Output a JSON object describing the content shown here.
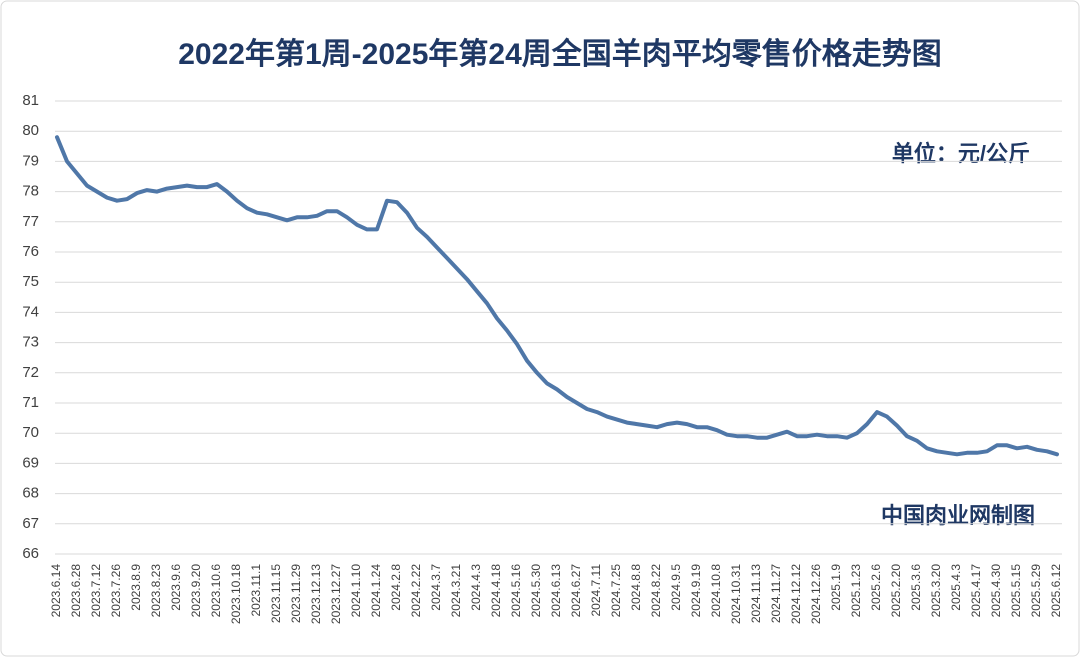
{
  "chart_data": {
    "type": "line",
    "title": "2022年第1周-2025年第24周全国羊肉平均零售价格走势图",
    "unit_note": "单位：元/公斤",
    "source_note": "中国肉业网制图",
    "categories": [
      "2023.6.14",
      null,
      "2023.6.28",
      null,
      "2023.7.12",
      null,
      "2023.7.26",
      null,
      "2023.8.9",
      null,
      "2023.8.23",
      null,
      "2023.9.6",
      null,
      "2023.9.20",
      null,
      "2023.10.6",
      null,
      "2023.10.18",
      null,
      "2023.11.1",
      null,
      "2023.11.15",
      null,
      "2023.11.29",
      null,
      "2023.12.13",
      null,
      "2023.12.27",
      null,
      "2024.1.10",
      null,
      "2024.1.24",
      null,
      "2024.2.8",
      null,
      "2024.2.22",
      null,
      "2024.3.7",
      null,
      "2024.3.21",
      null,
      "2024.4.3",
      null,
      "2024.4.18",
      null,
      "2024.5.16",
      null,
      "2024.5.30",
      null,
      "2024.6.13",
      null,
      "2024.6.27",
      null,
      "2024.7.11",
      null,
      "2024.7.25",
      null,
      "2024.8.8",
      null,
      "2024.8.22",
      null,
      "2024.9.5",
      null,
      "2024.9.19",
      null,
      "2024.10.8",
      null,
      "2024.10.31",
      null,
      "2024.11.13",
      null,
      "2024.11.27",
      null,
      "2024.12.12",
      null,
      "2024.12.26",
      null,
      "2025.1.9",
      null,
      "2025.1.23",
      null,
      "2025.2.6",
      null,
      "2025.2.20",
      null,
      "2025.3.6",
      null,
      "2025.3.20",
      null,
      "2025.4.3",
      null,
      "2025.4.17",
      null,
      "2025.4.30",
      null,
      "2025.5.15",
      null,
      "2025.5.29",
      null,
      "2025.6.12"
    ],
    "series": [
      {
        "name": "全国羊肉平均零售价格",
        "color": "#4f77a8",
        "values": [
          79.8,
          79.0,
          78.6,
          78.2,
          78.0,
          77.8,
          77.7,
          77.75,
          77.95,
          78.05,
          78.0,
          78.1,
          78.15,
          78.2,
          78.15,
          78.15,
          78.25,
          78.0,
          77.7,
          77.45,
          77.3,
          77.25,
          77.15,
          77.05,
          77.15,
          77.15,
          77.2,
          77.35,
          77.35,
          77.15,
          76.9,
          76.75,
          76.75,
          77.7,
          77.65,
          77.3,
          76.8,
          76.5,
          76.15,
          75.8,
          75.45,
          75.1,
          74.7,
          74.3,
          73.8,
          73.4,
          72.95,
          72.4,
          72.0,
          71.65,
          71.45,
          71.2,
          71.0,
          70.8,
          70.7,
          70.55,
          70.45,
          70.35,
          70.3,
          70.25,
          70.2,
          70.3,
          70.35,
          70.3,
          70.2,
          70.2,
          70.1,
          69.95,
          69.9,
          69.9,
          69.85,
          69.85,
          69.95,
          70.05,
          69.9,
          69.9,
          69.95,
          69.9,
          69.9,
          69.85,
          70.0,
          70.3,
          70.7,
          70.55,
          70.25,
          69.9,
          69.75,
          69.5,
          69.4,
          69.35,
          69.3,
          69.35,
          69.35,
          69.4,
          69.6,
          69.6,
          69.5,
          69.55,
          69.45,
          69.4,
          69.3
        ]
      }
    ],
    "ylim": [
      66,
      81
    ],
    "yticks": [
      66,
      67,
      68,
      69,
      70,
      71,
      72,
      73,
      74,
      75,
      76,
      77,
      78,
      79,
      80,
      81
    ],
    "grid": true
  }
}
